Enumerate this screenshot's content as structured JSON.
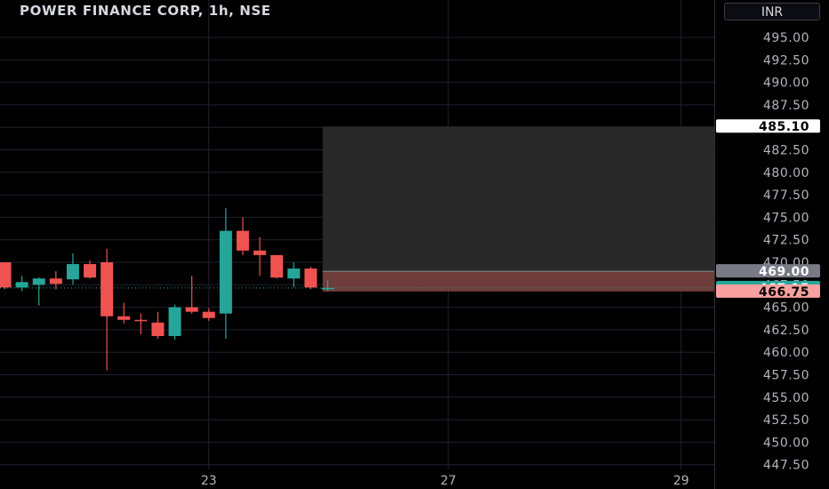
{
  "header": {
    "title": "POWER FINANCE CORP, 1h, NSE",
    "currency": "INR"
  },
  "colors": {
    "up": "#26a69a",
    "down": "#ef5350",
    "background": "#000000",
    "grid": "#1e2230"
  },
  "chart_data": {
    "type": "candlestick",
    "ylim": [
      446.5,
      497.5
    ],
    "y_ticks": [
      "495.00",
      "492.50",
      "490.00",
      "487.50",
      "485.00",
      "482.50",
      "480.00",
      "477.50",
      "475.00",
      "472.50",
      "470.00",
      "467.50",
      "465.00",
      "462.50",
      "460.00",
      "457.50",
      "455.00",
      "452.50",
      "450.00",
      "447.50"
    ],
    "x_ticks": [
      {
        "label": "23",
        "slot": 12.5
      },
      {
        "label": "27",
        "slot": 26.6
      },
      {
        "label": "29",
        "slot": 40.3
      }
    ],
    "candles": [
      {
        "o": 470.0,
        "h": 470.0,
        "l": 467.0,
        "c": 467.2
      },
      {
        "o": 467.2,
        "h": 468.5,
        "l": 466.8,
        "c": 467.8
      },
      {
        "o": 467.5,
        "h": 468.3,
        "l": 465.2,
        "c": 468.2
      },
      {
        "o": 468.2,
        "h": 469.0,
        "l": 467.0,
        "c": 467.6
      },
      {
        "o": 468.1,
        "h": 471.0,
        "l": 467.5,
        "c": 469.8
      },
      {
        "o": 469.8,
        "h": 470.2,
        "l": 468.2,
        "c": 468.3
      },
      {
        "o": 470.0,
        "h": 471.5,
        "l": 458.0,
        "c": 464.0
      },
      {
        "o": 464.0,
        "h": 465.5,
        "l": 463.2,
        "c": 463.6
      },
      {
        "o": 463.6,
        "h": 464.3,
        "l": 462.0,
        "c": 463.5
      },
      {
        "o": 463.3,
        "h": 464.5,
        "l": 461.5,
        "c": 461.8
      },
      {
        "o": 461.8,
        "h": 465.3,
        "l": 461.4,
        "c": 465.0
      },
      {
        "o": 465.0,
        "h": 468.5,
        "l": 464.3,
        "c": 464.5
      },
      {
        "o": 464.5,
        "h": 464.9,
        "l": 463.5,
        "c": 463.8
      },
      {
        "o": 464.3,
        "h": 476.0,
        "l": 461.5,
        "c": 473.5
      },
      {
        "o": 473.5,
        "h": 475.0,
        "l": 470.8,
        "c": 471.3
      },
      {
        "o": 471.3,
        "h": 472.8,
        "l": 468.5,
        "c": 470.8
      },
      {
        "o": 470.8,
        "h": 470.8,
        "l": 468.2,
        "c": 468.3
      },
      {
        "o": 468.2,
        "h": 470.0,
        "l": 467.2,
        "c": 469.3
      },
      {
        "o": 469.3,
        "h": 469.5,
        "l": 467.0,
        "c": 467.2
      },
      {
        "o": 467.1,
        "h": 468.0,
        "l": 466.8,
        "c": 467.15
      }
    ],
    "current_price": 467.15,
    "position": {
      "target": 485.1,
      "entry": 469.0,
      "stop": 466.75,
      "start_slot": 19.2
    },
    "price_labels": [
      {
        "value": 485.1,
        "text": "485.10",
        "bg": "#ffffff",
        "fg": "#000000"
      },
      {
        "value": 469.0,
        "text": "469.00",
        "bg": "#787b86",
        "fg": "#ffffff"
      },
      {
        "value": 467.15,
        "text": "467.15",
        "bg": "#26a69a",
        "fg": "#ffffff"
      },
      {
        "value": 466.75,
        "text": "466.75",
        "bg": "#f7a1a0",
        "fg": "#000000"
      }
    ]
  }
}
